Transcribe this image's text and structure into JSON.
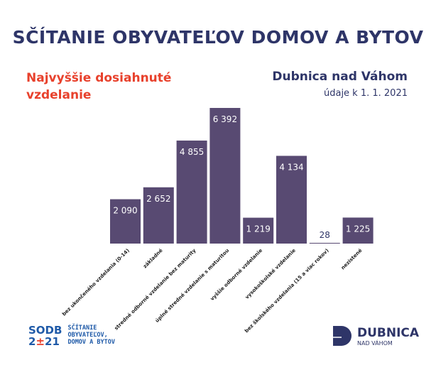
{
  "header": {
    "title": "SČÍTANIE OBYVATEĽOV DOMOV A BYTOV",
    "subtitle": "Najvyššie dosiahnuté vzdelanie",
    "city": "Dubnica nad Váhom",
    "date": "údaje k 1. 1. 2021"
  },
  "chart_data": {
    "type": "bar",
    "categories": [
      "bez ukončeného vzdelania (0-14)",
      "základné",
      "stredné odborné vzdelanie bez maturity",
      "úplné stredné vzdelanie s maturitou",
      "vyššie odborné vzdelanie",
      "vysokoškolské vzdelanie",
      "bez školského vzdelania (15 a viac rokov)",
      "nezistené"
    ],
    "values": [
      2090,
      2652,
      4855,
      6392,
      1219,
      4134,
      28,
      1225
    ],
    "labels": [
      "2 090",
      "2 652",
      "4 855",
      "6 392",
      "1 219",
      "4 134",
      "28",
      "1 225"
    ],
    "bar_color": "#584a72",
    "grid": false
  },
  "footer": {
    "logo_left_mark": "SODB 2021",
    "logo_left_text": [
      "SČÍTANIE",
      "OBYVATEĽOV,",
      "DOMOV A BYTOV"
    ],
    "logo_right_name": "DUBNICA",
    "logo_right_sub": "NAD VÁHOM"
  }
}
